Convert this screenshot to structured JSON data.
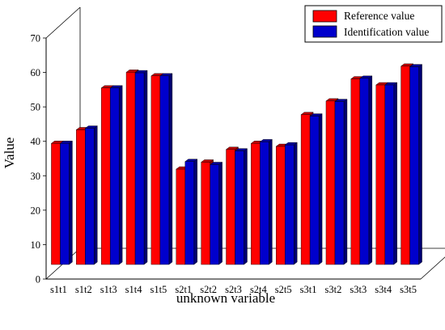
{
  "chart_data": {
    "type": "bar",
    "style": "3d-clustered",
    "categories": [
      "s1t1",
      "s1t2",
      "s1t3",
      "s1t4",
      "s1t5",
      "s2t1",
      "s2t2",
      "s2t3",
      "s2t4",
      "s2t5",
      "s3t1",
      "s3t2",
      "s3t3",
      "s3t4",
      "s3t5"
    ],
    "series": [
      {
        "name": "Reference value",
        "color": "#ff0000",
        "values": [
          40.0,
          44.5,
          58.3,
          63.5,
          62.3,
          31.5,
          33.8,
          38.0,
          40.0,
          39.0,
          49.5,
          54.0,
          61.3,
          59.3,
          65.5
        ]
      },
      {
        "name": "Identification value",
        "color": "#0000cc",
        "values": [
          40.0,
          45.0,
          58.3,
          63.3,
          62.3,
          34.0,
          33.0,
          37.5,
          40.5,
          39.5,
          49.0,
          53.8,
          61.5,
          59.3,
          65.3
        ]
      }
    ],
    "xlabel": "unknown variable",
    "ylabel": "Value",
    "ylim": [
      0,
      70
    ],
    "yticks": [
      0,
      10,
      20,
      30,
      40,
      50,
      60,
      70
    ],
    "grid": false,
    "legend_position": "top-right"
  }
}
